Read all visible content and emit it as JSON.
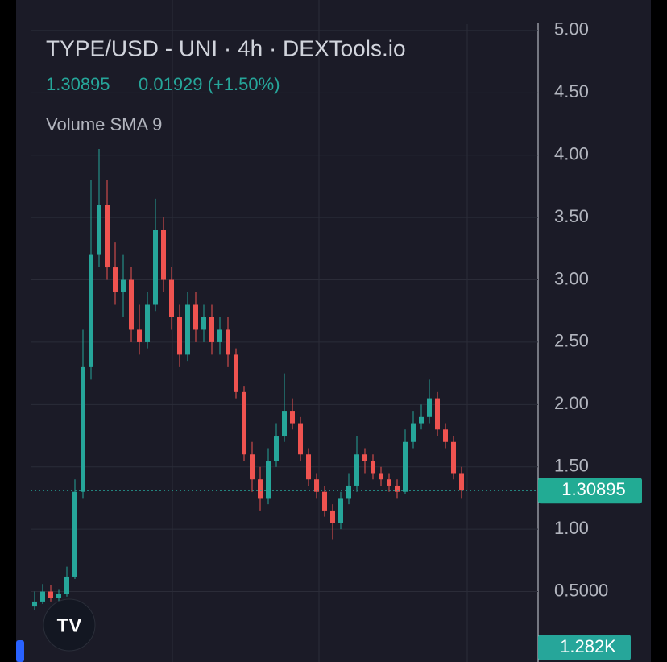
{
  "chart_data": {
    "type": "candlestick",
    "title": "TYPE/USD - UNI · 4h · DEXTools.io",
    "last_price": "1.30895",
    "change": "0.01929 (+1.50%)",
    "indicator": "Volume SMA 9",
    "price_line": 1.30895,
    "price_label": "1.30895",
    "volume_label": "1.282K",
    "up_color": "#26a69a",
    "down_color": "#ef5350",
    "categories": [
      null,
      null,
      null,
      null,
      null,
      null,
      null,
      null,
      null,
      null,
      null,
      null,
      null,
      null,
      null,
      null,
      null,
      null,
      null,
      null,
      null,
      null,
      null,
      null,
      null,
      null,
      null,
      null,
      null,
      null,
      null,
      null,
      null,
      null,
      null,
      null,
      null,
      null,
      null,
      null,
      null,
      null,
      null,
      null,
      null,
      null,
      null,
      null,
      null,
      null,
      null,
      null,
      null,
      null
    ],
    "open": [
      0.38,
      0.42,
      0.5,
      0.45,
      0.48,
      0.62,
      1.3,
      2.3,
      3.2,
      3.6,
      3.1,
      2.9,
      3.0,
      2.6,
      2.5,
      2.8,
      3.4,
      3.0,
      2.7,
      2.4,
      2.8,
      2.6,
      2.7,
      2.5,
      2.6,
      2.4,
      2.1,
      1.6,
      1.4,
      1.25,
      1.55,
      1.75,
      1.95,
      1.85,
      1.6,
      1.4,
      1.3,
      1.15,
      1.05,
      1.25,
      1.35,
      1.6,
      1.55,
      1.45,
      1.4,
      1.35,
      1.3,
      1.7,
      1.85,
      1.9,
      2.05,
      1.8,
      1.7,
      1.45
    ],
    "high": [
      0.5,
      0.56,
      0.55,
      0.52,
      0.7,
      1.4,
      2.6,
      3.8,
      4.05,
      3.8,
      3.3,
      3.2,
      3.1,
      2.8,
      2.9,
      3.65,
      3.5,
      3.1,
      2.8,
      2.9,
      2.9,
      2.8,
      2.8,
      2.7,
      2.7,
      2.45,
      2.15,
      1.7,
      1.5,
      1.65,
      1.85,
      2.25,
      2.05,
      1.9,
      1.65,
      1.45,
      1.35,
      1.2,
      1.3,
      1.45,
      1.75,
      1.65,
      1.6,
      1.5,
      1.45,
      1.4,
      1.8,
      1.95,
      2.0,
      2.2,
      2.1,
      1.85,
      1.75,
      1.5
    ],
    "low": [
      0.35,
      0.4,
      0.42,
      0.42,
      0.46,
      0.6,
      1.25,
      2.2,
      3.1,
      3.0,
      2.8,
      2.7,
      2.5,
      2.4,
      2.45,
      2.75,
      2.9,
      2.6,
      2.3,
      2.35,
      2.5,
      2.5,
      2.4,
      2.4,
      2.3,
      2.05,
      1.55,
      1.3,
      1.15,
      1.2,
      1.5,
      1.7,
      1.8,
      1.55,
      1.35,
      1.25,
      1.1,
      0.92,
      1.0,
      1.2,
      1.3,
      1.45,
      1.4,
      1.35,
      1.3,
      1.25,
      1.28,
      1.65,
      1.8,
      1.85,
      1.75,
      1.65,
      1.4,
      1.25
    ],
    "close": [
      0.42,
      0.5,
      0.45,
      0.48,
      0.62,
      1.3,
      2.3,
      3.2,
      3.6,
      3.1,
      2.9,
      3.0,
      2.6,
      2.5,
      2.8,
      3.4,
      3.0,
      2.7,
      2.4,
      2.8,
      2.6,
      2.7,
      2.5,
      2.6,
      2.4,
      2.1,
      1.6,
      1.4,
      1.25,
      1.55,
      1.75,
      1.95,
      1.85,
      1.6,
      1.4,
      1.3,
      1.15,
      1.05,
      1.25,
      1.35,
      1.6,
      1.55,
      1.45,
      1.4,
      1.35,
      1.3,
      1.7,
      1.85,
      1.9,
      2.05,
      1.8,
      1.7,
      1.45,
      1.31
    ],
    "ylim": [
      -0.065,
      5.245
    ],
    "yticks": [
      {
        "value": 0.5,
        "label": "0.5000"
      },
      {
        "value": 1,
        "label": "1.00"
      },
      {
        "value": 1.5,
        "label": "1.50"
      },
      {
        "value": 2,
        "label": "2.00"
      },
      {
        "value": 2.5,
        "label": "2.50"
      },
      {
        "value": 3,
        "label": "3.00"
      },
      {
        "value": 3.5,
        "label": "3.50"
      },
      {
        "value": 4,
        "label": "4.00"
      },
      {
        "value": 4.5,
        "label": "4.50"
      },
      {
        "value": 5,
        "label": "5.00"
      }
    ],
    "grid": true
  }
}
